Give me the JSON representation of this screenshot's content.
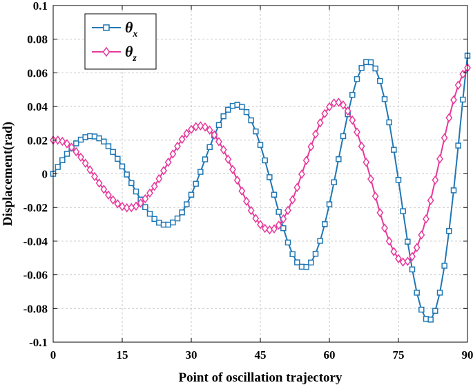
{
  "chart_data": {
    "type": "line",
    "title": "",
    "xlabel": "Point of oscillation trajectory",
    "ylabel": "Displacement(rad)",
    "xlim": [
      0,
      90
    ],
    "ylim": [
      -0.1,
      0.1
    ],
    "xticks": [
      0,
      15,
      30,
      45,
      60,
      75,
      90
    ],
    "xtick_labels": [
      "0",
      "15",
      "30",
      "45",
      "60",
      "75",
      "90"
    ],
    "yticks": [
      -0.1,
      -0.08,
      -0.06,
      -0.04,
      -0.02,
      0,
      0.02,
      0.04,
      0.06,
      0.08,
      0.1
    ],
    "ytick_labels": [
      "-0.1",
      "-0.08",
      "-0.06",
      "-0.04",
      "-0.02",
      "0",
      "0.02",
      "0.04",
      "0.06",
      "0.08",
      "0.1"
    ],
    "grid": true,
    "legend_position": "top-left",
    "series": [
      {
        "name": "θx",
        "legend_main": "θ",
        "legend_sub": "x",
        "color": "#1f77b4",
        "marker": "square",
        "x": [
          0,
          1,
          2,
          3,
          4,
          5,
          6,
          7,
          8,
          9,
          10,
          11,
          12,
          13,
          14,
          15,
          16,
          17,
          18,
          19,
          20,
          21,
          22,
          23,
          24,
          25,
          26,
          27,
          28,
          29,
          30,
          31,
          32,
          33,
          34,
          35,
          36,
          37,
          38,
          39,
          40,
          41,
          42,
          43,
          44,
          45,
          46,
          47,
          48,
          49,
          50,
          51,
          52,
          53,
          54,
          55,
          56,
          57,
          58,
          59,
          60,
          61,
          62,
          63,
          64,
          65,
          66,
          67,
          68,
          69,
          70,
          71,
          72,
          73,
          74,
          75,
          76,
          77,
          78,
          79,
          80,
          81,
          82,
          83,
          84,
          85,
          86,
          87,
          88,
          89,
          90
        ],
        "y": [
          0.0,
          0.0041,
          0.0081,
          0.0119,
          0.0152,
          0.0181,
          0.0203,
          0.0218,
          0.0224,
          0.0222,
          0.0211,
          0.0192,
          0.0164,
          0.013,
          0.0089,
          0.0044,
          -0.0004,
          -0.0055,
          -0.0105,
          -0.0153,
          -0.0198,
          -0.0237,
          -0.0268,
          -0.029,
          -0.0302,
          -0.0302,
          -0.0289,
          -0.0265,
          -0.0229,
          -0.0181,
          -0.0124,
          -0.0059,
          0.0012,
          0.0086,
          0.0159,
          0.0228,
          0.029,
          0.0342,
          0.0381,
          0.0404,
          0.041,
          0.0398,
          0.0367,
          0.0318,
          0.0252,
          0.0172,
          0.008,
          -0.002,
          -0.0124,
          -0.0226,
          -0.0323,
          -0.0408,
          -0.0477,
          -0.0526,
          -0.0552,
          -0.0553,
          -0.0527,
          -0.0475,
          -0.0398,
          -0.0299,
          -0.0181,
          -0.005,
          0.0087,
          0.0224,
          0.0354,
          0.0469,
          0.0563,
          0.0629,
          0.0664,
          0.0663,
          0.0626,
          0.0552,
          0.0444,
          0.0306,
          0.0143,
          -0.0036,
          -0.0222,
          -0.0403,
          -0.0568,
          -0.0706,
          -0.0807,
          -0.0862,
          -0.0866,
          -0.0814,
          -0.0706,
          -0.0546,
          -0.034,
          -0.0098,
          0.0168,
          0.0441,
          0.0702
        ]
      },
      {
        "name": "θz",
        "legend_main": "θ",
        "legend_sub": "z",
        "color": "#e6399b",
        "marker": "diamond",
        "x": [
          0,
          1,
          2,
          3,
          4,
          5,
          6,
          7,
          8,
          9,
          10,
          11,
          12,
          13,
          14,
          15,
          16,
          17,
          18,
          19,
          20,
          21,
          22,
          23,
          24,
          25,
          26,
          27,
          28,
          29,
          30,
          31,
          32,
          33,
          34,
          35,
          36,
          37,
          38,
          39,
          40,
          41,
          42,
          43,
          44,
          45,
          46,
          47,
          48,
          49,
          50,
          51,
          52,
          53,
          54,
          55,
          56,
          57,
          58,
          59,
          60,
          61,
          62,
          63,
          64,
          65,
          66,
          67,
          68,
          69,
          70,
          71,
          72,
          73,
          74,
          75,
          76,
          77,
          78,
          79,
          80,
          81,
          82,
          83,
          84,
          85,
          86,
          87,
          88,
          89,
          90
        ],
        "y": [
          0.02,
          0.02,
          0.0193,
          0.0179,
          0.0158,
          0.0131,
          0.0099,
          0.0063,
          0.0024,
          -0.0016,
          -0.0055,
          -0.0092,
          -0.0126,
          -0.0155,
          -0.0178,
          -0.0194,
          -0.0202,
          -0.0201,
          -0.0192,
          -0.0174,
          -0.0148,
          -0.0114,
          -0.0074,
          -0.0029,
          0.0019,
          0.0069,
          0.0118,
          0.0164,
          0.0205,
          0.0239,
          0.0264,
          0.028,
          0.0285,
          0.0278,
          0.026,
          0.0231,
          0.0191,
          0.0143,
          0.0087,
          0.0026,
          -0.0038,
          -0.0102,
          -0.0163,
          -0.0218,
          -0.0265,
          -0.0301,
          -0.0324,
          -0.0333,
          -0.0327,
          -0.0305,
          -0.0268,
          -0.0217,
          -0.0154,
          -0.0081,
          -0.0002,
          0.008,
          0.0161,
          0.0236,
          0.0303,
          0.0358,
          0.0398,
          0.0421,
          0.0425,
          0.0409,
          0.0373,
          0.0319,
          0.0248,
          0.0164,
          0.0069,
          -0.0031,
          -0.0133,
          -0.0231,
          -0.0322,
          -0.04,
          -0.0462,
          -0.0504,
          -0.0524,
          -0.052,
          -0.0491,
          -0.0438,
          -0.0363,
          -0.0268,
          -0.0158,
          -0.0037,
          0.0089,
          0.0214,
          0.0333,
          0.0439,
          0.0527,
          0.0592,
          0.063
        ]
      }
    ]
  }
}
